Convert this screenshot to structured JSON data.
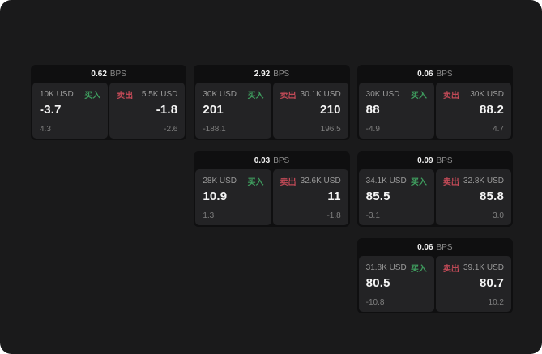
{
  "colors": {
    "surface_bg": "#1a1a1b",
    "card_bg": "#0f0f10",
    "subcard_bg": "#232325",
    "buy_color": "#3f9e5f",
    "sell_color": "#c14a57",
    "primary_text": "#f5f5f5",
    "muted_text": "#9a9a9a"
  },
  "labels": {
    "bps_unit": "BPS",
    "buy": "买入",
    "sell": "卖出"
  },
  "cards": [
    {
      "row": 1,
      "col": 1,
      "bps": "0.62",
      "buy": {
        "amount": "10K USD",
        "value": "-3.7",
        "sub": "4.3"
      },
      "sell": {
        "amount": "5.5K USD",
        "value": "-1.8",
        "sub": "-2.6"
      }
    },
    {
      "row": 1,
      "col": 2,
      "bps": "2.92",
      "buy": {
        "amount": "30K USD",
        "value": "201",
        "sub": "-188.1"
      },
      "sell": {
        "amount": "30.1K USD",
        "value": "210",
        "sub": "196.5"
      }
    },
    {
      "row": 1,
      "col": 3,
      "bps": "0.06",
      "buy": {
        "amount": "30K USD",
        "value": "88",
        "sub": "-4.9"
      },
      "sell": {
        "amount": "30K USD",
        "value": "88.2",
        "sub": "4.7"
      }
    },
    {
      "row": 2,
      "col": 2,
      "bps": "0.03",
      "buy": {
        "amount": "28K USD",
        "value": "10.9",
        "sub": "1.3"
      },
      "sell": {
        "amount": "32.6K USD",
        "value": "11",
        "sub": "-1.8"
      }
    },
    {
      "row": 2,
      "col": 3,
      "bps": "0.09",
      "buy": {
        "amount": "34.1K USD",
        "value": "85.5",
        "sub": "-3.1"
      },
      "sell": {
        "amount": "32.8K USD",
        "value": "85.8",
        "sub": "3.0"
      }
    },
    {
      "row": 3,
      "col": 3,
      "bps": "0.06",
      "buy": {
        "amount": "31.8K USD",
        "value": "80.5",
        "sub": "-10.8"
      },
      "sell": {
        "amount": "39.1K USD",
        "value": "80.7",
        "sub": "10.2"
      }
    }
  ]
}
